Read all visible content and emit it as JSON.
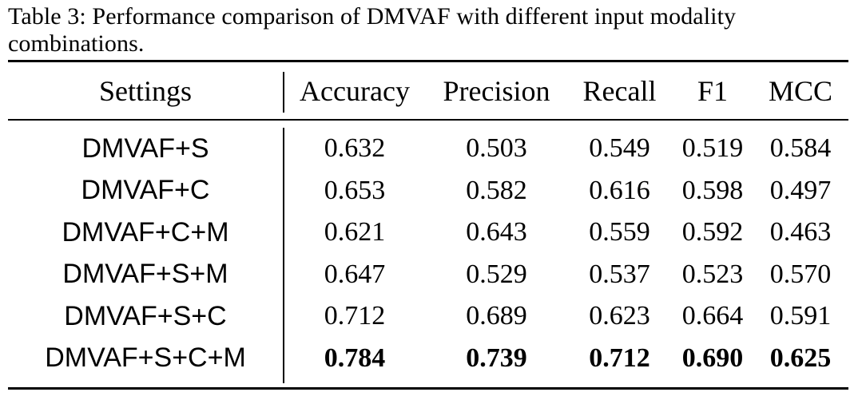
{
  "caption": "Table 3: Performance comparison of DMVAF with different input modality combinations.",
  "table": {
    "headers": [
      "Settings",
      "Accuracy",
      "Precision",
      "Recall",
      "F1",
      "MCC"
    ],
    "rows": [
      {
        "setting": "DMVAF+S",
        "accuracy": "0.632",
        "precision": "0.503",
        "recall": "0.549",
        "f1": "0.519",
        "mcc": "0.584",
        "bold": false
      },
      {
        "setting": "DMVAF+C",
        "accuracy": "0.653",
        "precision": "0.582",
        "recall": "0.616",
        "f1": "0.598",
        "mcc": "0.497",
        "bold": false
      },
      {
        "setting": "DMVAF+C+M",
        "accuracy": "0.621",
        "precision": "0.643",
        "recall": "0.559",
        "f1": "0.592",
        "mcc": "0.463",
        "bold": false
      },
      {
        "setting": "DMVAF+S+M",
        "accuracy": "0.647",
        "precision": "0.529",
        "recall": "0.537",
        "f1": "0.523",
        "mcc": "0.570",
        "bold": false
      },
      {
        "setting": "DMVAF+S+C",
        "accuracy": "0.712",
        "precision": "0.689",
        "recall": "0.623",
        "f1": "0.664",
        "mcc": "0.591",
        "bold": false
      },
      {
        "setting": "DMVAF+S+C+M",
        "accuracy": "0.784",
        "precision": "0.739",
        "recall": "0.712",
        "f1": "0.690",
        "mcc": "0.625",
        "bold": true
      }
    ]
  }
}
